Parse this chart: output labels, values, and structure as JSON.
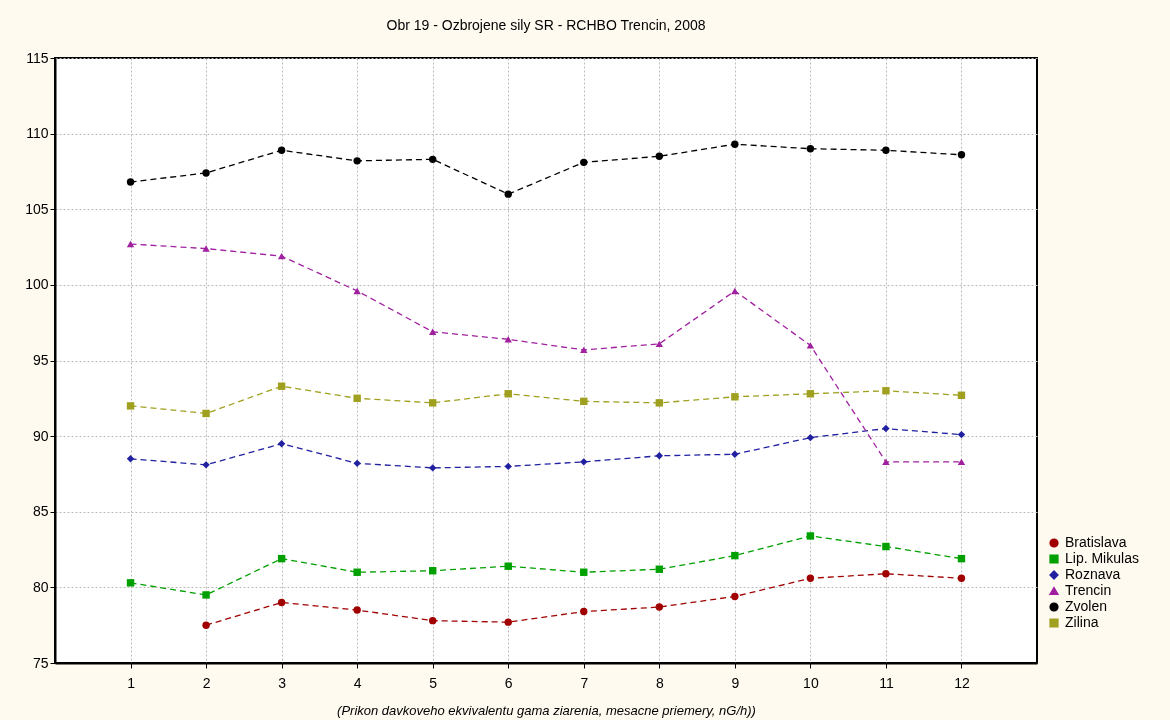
{
  "chart_data": {
    "type": "line",
    "title": "Obr 19 - Ozbrojene sily SR - RCHBO Trencin, 2008",
    "xlabel": "(Prikon davkoveho ekvivalentu gama ziarenia, mesacne priemery, nG/h))",
    "x": [
      1,
      2,
      3,
      4,
      5,
      6,
      7,
      8,
      9,
      10,
      11,
      12
    ],
    "xlim": [
      0,
      13
    ],
    "xticks": [
      1,
      2,
      3,
      4,
      5,
      6,
      7,
      8,
      9,
      10,
      11,
      12
    ],
    "ylim": [
      75,
      115
    ],
    "yticks": [
      75,
      80,
      85,
      90,
      95,
      100,
      105,
      110,
      115
    ],
    "grid": true,
    "legend": "right",
    "line_style": "dashed",
    "series": [
      {
        "name": "Bratislava",
        "color": "#a00000",
        "marker": "circle",
        "values": [
          null,
          77.5,
          79.0,
          78.5,
          77.8,
          77.7,
          78.4,
          78.7,
          79.4,
          80.6,
          80.9,
          80.6
        ]
      },
      {
        "name": "Lip. Mikulas",
        "color": "#00a000",
        "marker": "square",
        "values": [
          80.3,
          79.5,
          81.9,
          81.0,
          81.1,
          81.4,
          81.0,
          81.2,
          82.1,
          83.4,
          82.7,
          81.9
        ]
      },
      {
        "name": "Roznava",
        "color": "#2020a0",
        "marker": "diamond",
        "values": [
          88.5,
          88.1,
          89.5,
          88.2,
          87.9,
          88.0,
          88.3,
          88.7,
          88.8,
          89.9,
          90.5,
          90.1
        ]
      },
      {
        "name": "Trencin",
        "color": "#a020a0",
        "marker": "triangle",
        "values": [
          102.7,
          102.4,
          101.9,
          99.6,
          96.9,
          96.4,
          95.7,
          96.1,
          99.6,
          96.0,
          88.3,
          88.3
        ]
      },
      {
        "name": "Zvolen",
        "color": "#000000",
        "marker": "circle",
        "values": [
          106.8,
          107.4,
          108.9,
          108.2,
          108.3,
          106.0,
          108.1,
          108.5,
          109.3,
          109.0,
          108.9,
          108.6
        ]
      },
      {
        "name": "Zilina",
        "color": "#a0a020",
        "marker": "square",
        "values": [
          92.0,
          91.5,
          93.3,
          92.5,
          92.2,
          92.8,
          92.3,
          92.2,
          92.6,
          92.8,
          93.0,
          92.7
        ]
      }
    ]
  }
}
